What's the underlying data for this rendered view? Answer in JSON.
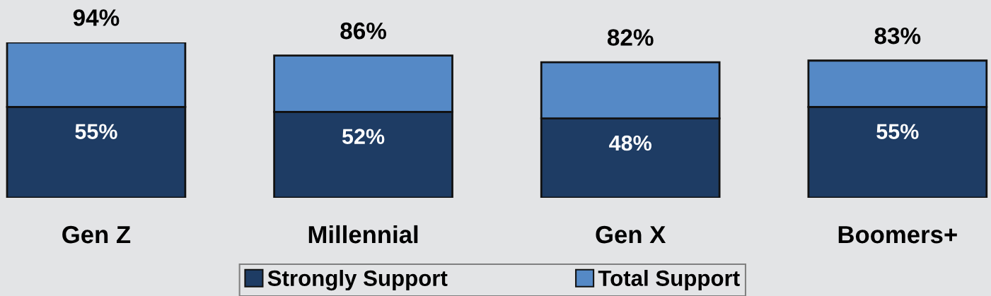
{
  "chart_data": {
    "type": "bar",
    "stacked": true,
    "legend": "bottom",
    "categories": [
      "Gen Z",
      "Millennial",
      "Gen X",
      "Boomers+"
    ],
    "series": [
      {
        "name": "Strongly Support",
        "color": "#1e3c64",
        "values": [
          55,
          52,
          48,
          55
        ],
        "value_labels": [
          "55%",
          "52%",
          "48%",
          "55%"
        ]
      },
      {
        "name": "Total Support",
        "color": "#5589c6",
        "values": [
          39,
          34,
          34,
          28
        ]
      }
    ],
    "totals": [
      "94%",
      "86%",
      "82%",
      "83%"
    ]
  }
}
